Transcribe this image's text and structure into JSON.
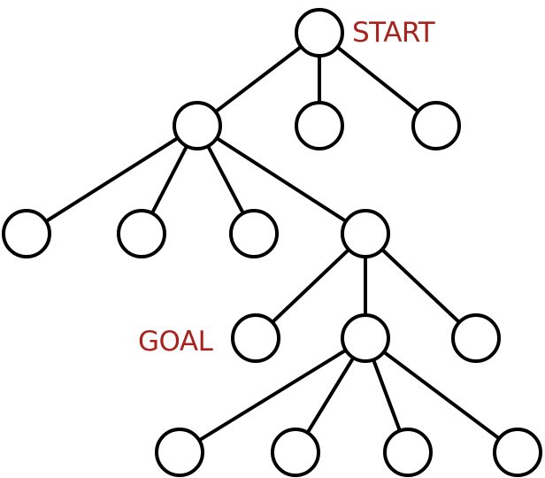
{
  "diagram": {
    "type": "tree",
    "label_color": "#a8231e",
    "line_color": "#000000",
    "labels": {
      "start": "START",
      "goal": "GOAL"
    },
    "nodes": [
      {
        "id": "n0",
        "label_key": "start"
      },
      {
        "id": "n1"
      },
      {
        "id": "n2"
      },
      {
        "id": "n3"
      },
      {
        "id": "n4"
      },
      {
        "id": "n5"
      },
      {
        "id": "n6"
      },
      {
        "id": "n7"
      },
      {
        "id": "n8",
        "label_key": "goal"
      },
      {
        "id": "n9"
      },
      {
        "id": "n10"
      },
      {
        "id": "n11"
      },
      {
        "id": "n12"
      },
      {
        "id": "n13"
      },
      {
        "id": "n14"
      }
    ],
    "edges": [
      [
        "n0",
        "n1"
      ],
      [
        "n0",
        "n2"
      ],
      [
        "n0",
        "n3"
      ],
      [
        "n1",
        "n4"
      ],
      [
        "n1",
        "n5"
      ],
      [
        "n1",
        "n6"
      ],
      [
        "n1",
        "n7"
      ],
      [
        "n7",
        "n8"
      ],
      [
        "n7",
        "n9"
      ],
      [
        "n7",
        "n10"
      ],
      [
        "n9",
        "n11"
      ],
      [
        "n9",
        "n12"
      ],
      [
        "n9",
        "n13"
      ],
      [
        "n9",
        "n14"
      ]
    ]
  }
}
